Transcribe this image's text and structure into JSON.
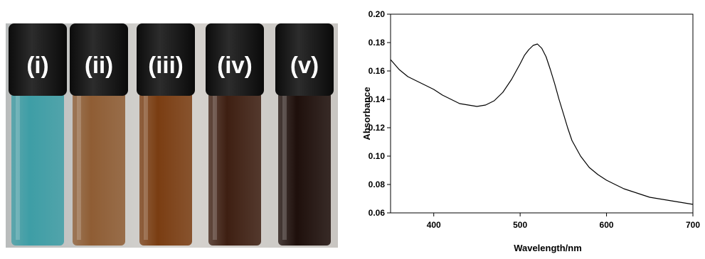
{
  "photo": {
    "vials": [
      {
        "label": "(i)",
        "liquid_color": "#3e9ea6"
      },
      {
        "label": "(ii)",
        "liquid_color": "#8f5d34"
      },
      {
        "label": "(iii)",
        "liquid_color": "#7a3d12"
      },
      {
        "label": "(iv)",
        "liquid_color": "#3e1f12"
      },
      {
        "label": "(v)",
        "liquid_color": "#1e0f0b"
      }
    ]
  },
  "chart_data": {
    "type": "line",
    "xlabel": "Wavelength/nm",
    "ylabel": "Absorbance",
    "xlim": [
      350,
      700
    ],
    "ylim": [
      0.06,
      0.2
    ],
    "xticks": [
      400,
      500,
      600,
      700
    ],
    "yticks": [
      "0.06",
      "0.08",
      "0.10",
      "0.12",
      "0.14",
      "0.16",
      "0.18",
      "0.20"
    ],
    "grid": false,
    "line_color": "#000000",
    "series": [
      {
        "x": [
          350,
          360,
          370,
          380,
          390,
          400,
          410,
          420,
          430,
          440,
          450,
          460,
          470,
          480,
          490,
          500,
          505,
          510,
          515,
          520,
          525,
          530,
          535,
          540,
          545,
          550,
          555,
          560,
          570,
          580,
          590,
          600,
          610,
          620,
          630,
          640,
          650,
          660,
          670,
          680,
          690,
          700
        ],
        "y": [
          0.168,
          0.161,
          0.156,
          0.153,
          0.15,
          0.147,
          0.143,
          0.14,
          0.137,
          0.136,
          0.135,
          0.136,
          0.139,
          0.145,
          0.154,
          0.165,
          0.171,
          0.175,
          0.178,
          0.179,
          0.176,
          0.17,
          0.161,
          0.151,
          0.14,
          0.13,
          0.12,
          0.111,
          0.1,
          0.092,
          0.087,
          0.083,
          0.08,
          0.077,
          0.075,
          0.073,
          0.071,
          0.07,
          0.069,
          0.068,
          0.067,
          0.066
        ]
      }
    ]
  }
}
